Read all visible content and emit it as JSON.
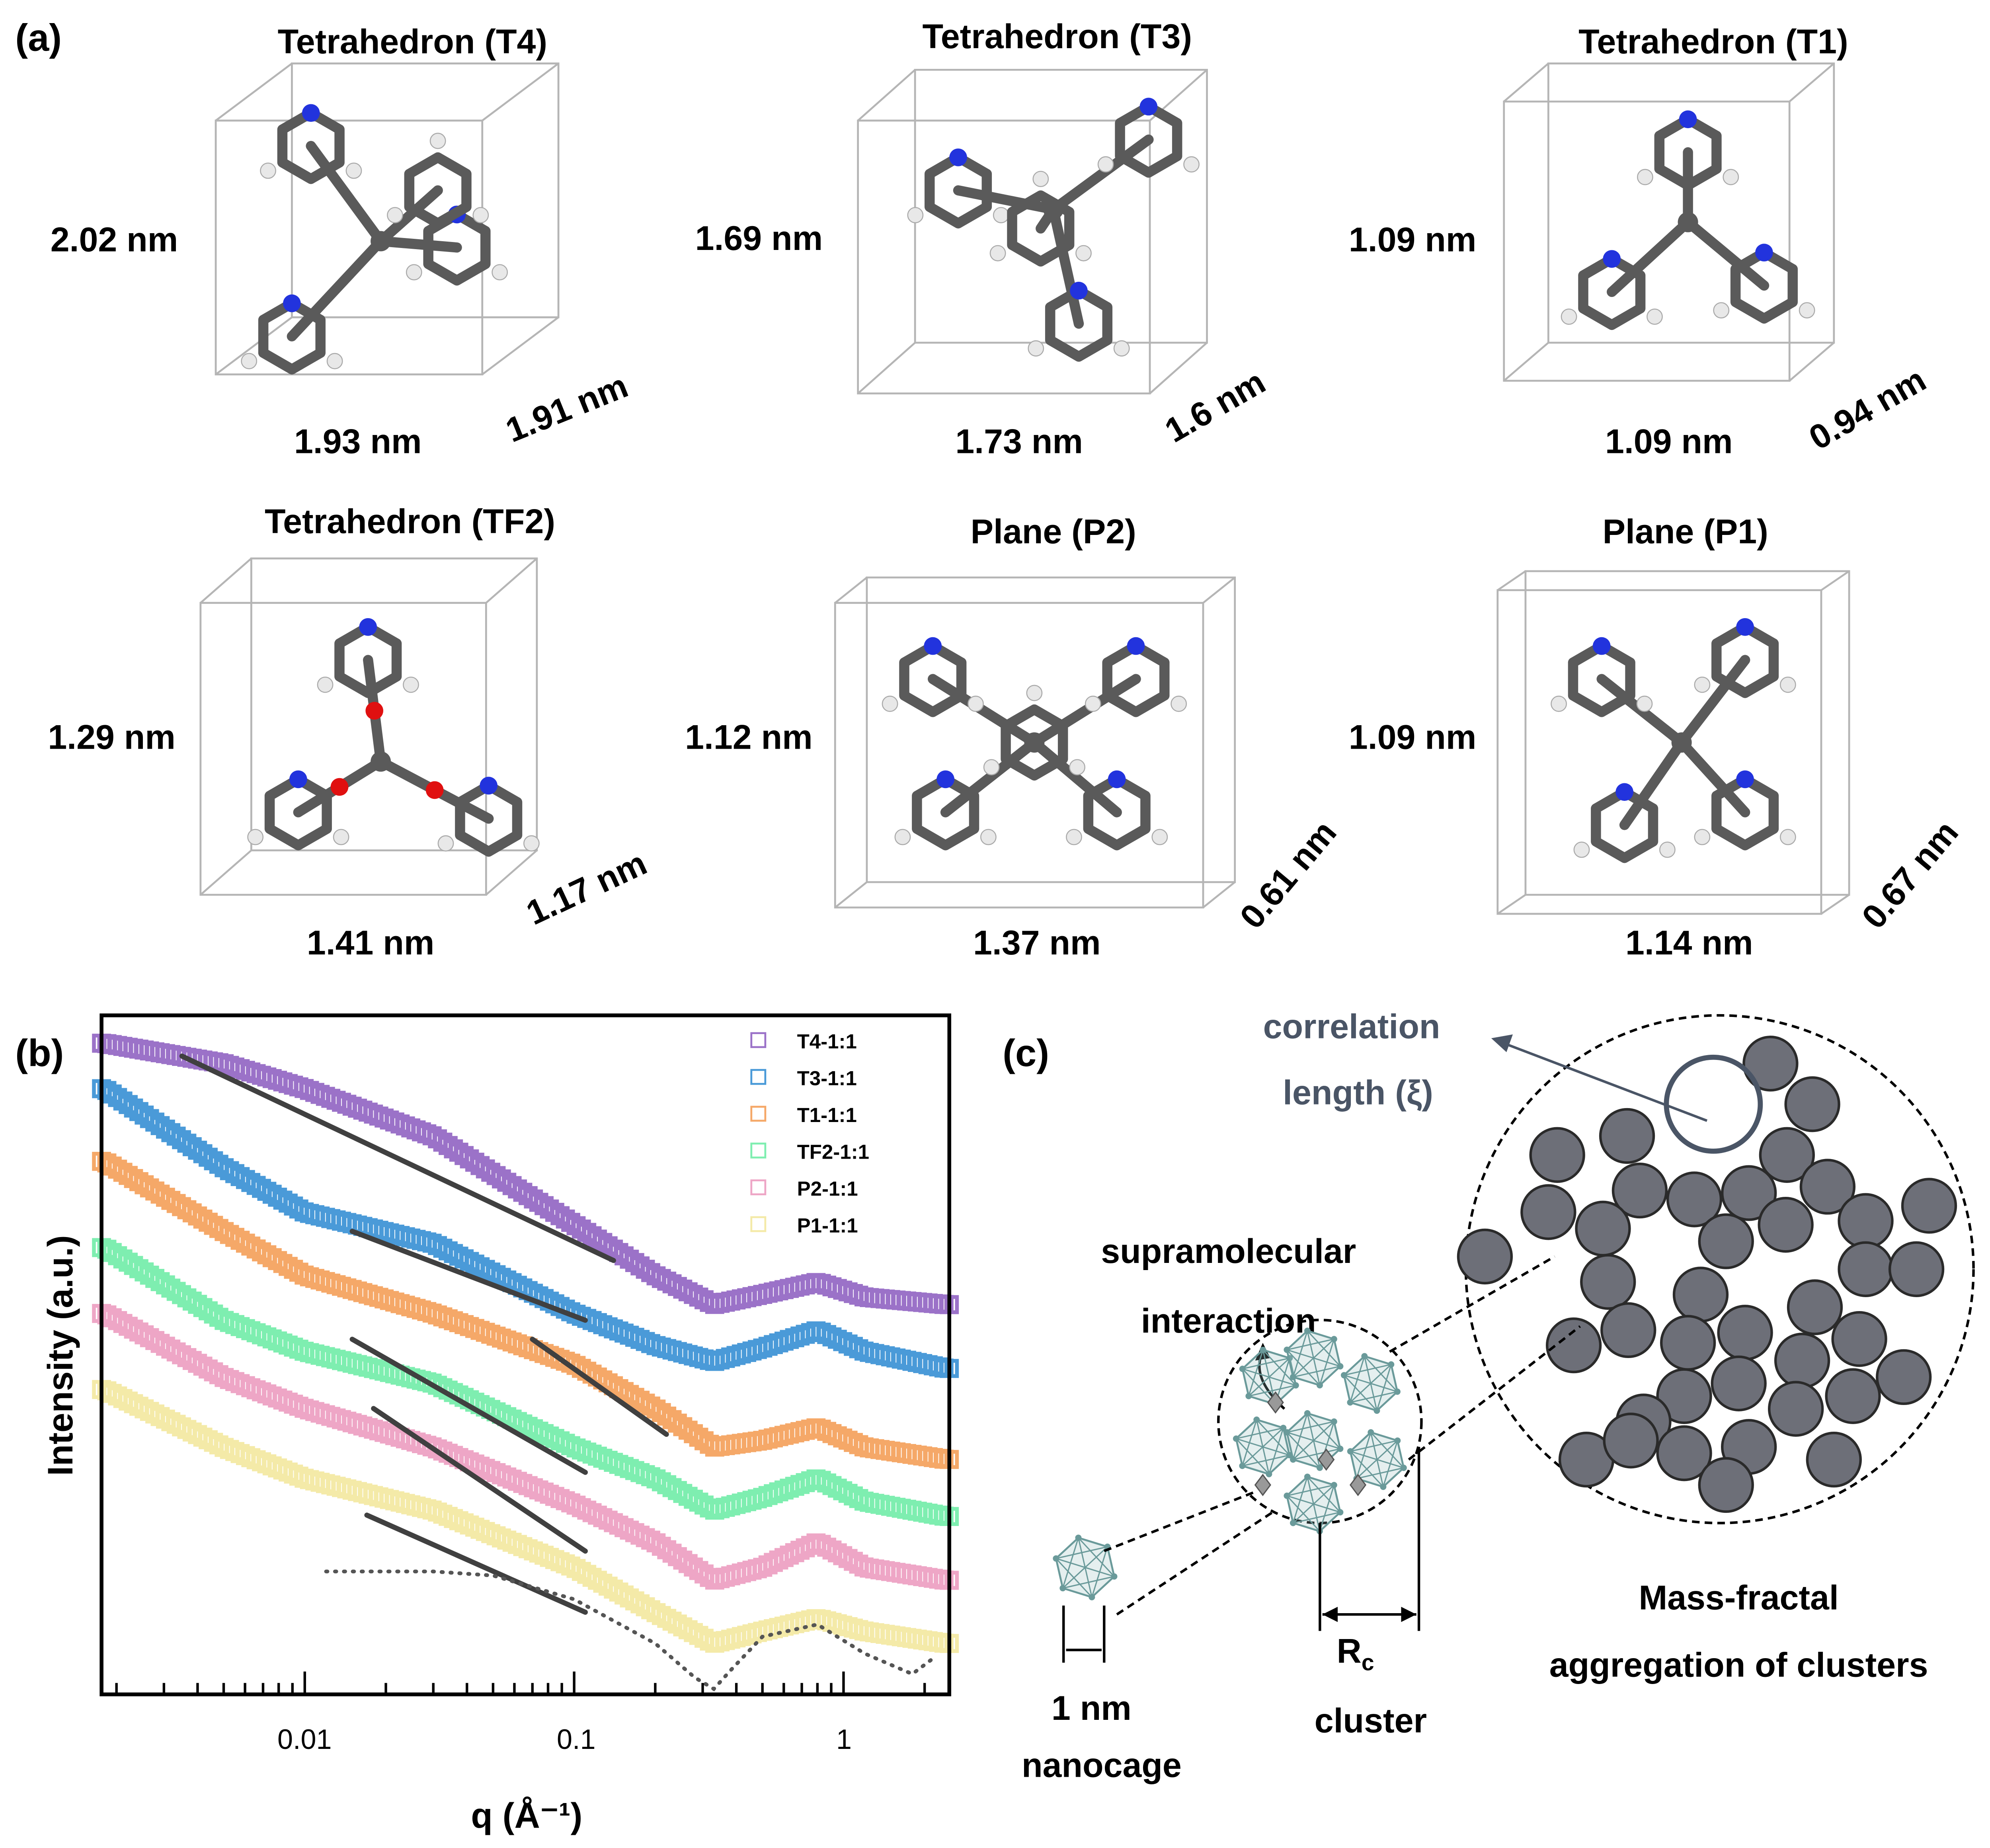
{
  "panel_a": {
    "label": "(a)",
    "molecules": [
      {
        "title": "Tetrahedron (T4)",
        "height": "2.02 nm",
        "width": "1.93 nm",
        "depth": "1.91 nm"
      },
      {
        "title": "Tetrahedron (T3)",
        "height": "1.69 nm",
        "width": "1.73 nm",
        "depth": "1.6 nm"
      },
      {
        "title": "Tetrahedron (T1)",
        "height": "1.09 nm",
        "width": "1.09 nm",
        "depth": "0.94 nm"
      },
      {
        "title": "Tetrahedron (TF2)",
        "height": "1.29 nm",
        "width": "1.41 nm",
        "depth": "1.17 nm"
      },
      {
        "title": "Plane (P2)",
        "height": "1.12 nm",
        "width": "1.37 nm",
        "depth": "0.61 nm"
      },
      {
        "title": "Plane (P1)",
        "height": "1.09 nm",
        "width": "1.14 nm",
        "depth": "0.67 nm"
      }
    ],
    "atom_colors": {
      "carbon": "#5a5a5a",
      "hydrogen": "#e8e8e8",
      "nitrogen": "#2233dd",
      "oxygen": "#e01010"
    }
  },
  "panel_b": {
    "label": "(b)"
  },
  "chart_data": {
    "type": "scatter",
    "xlabel": "q (Å⁻¹)",
    "ylabel": "Intensity (a.u.)",
    "x_scale": "log",
    "xlim": [
      0.00176,
      2.47
    ],
    "ylim": [
      0,
      100
    ],
    "x_ticks": [
      {
        "value": 0.01,
        "label": "0.01"
      },
      {
        "value": 0.1,
        "label": "0.1"
      },
      {
        "value": 1,
        "label": "1"
      }
    ],
    "y_ticks_shown": false,
    "grid": false,
    "legend_position": "top-right",
    "marker": "open-square",
    "q": [
      0.0018,
      0.005,
      0.01,
      0.03,
      0.1,
      0.2,
      0.33,
      0.5,
      0.8,
      1.2,
      2.4
    ],
    "series": [
      {
        "name": "T4-1:1",
        "color": "#9b72c8",
        "values": [
          95.9,
          92.9,
          89.2,
          82.2,
          69.2,
          61.7,
          57.4,
          58.9,
          60.7,
          58.5,
          57.4
        ]
      },
      {
        "name": "T3-1:1",
        "color": "#4a9ad8",
        "values": [
          89.2,
          77.6,
          71.0,
          66.4,
          56.1,
          51.4,
          49.0,
          51.0,
          53.6,
          50.5,
          48.0
        ]
      },
      {
        "name": "T1-1:1",
        "color": "#f5a868",
        "values": [
          78.5,
          68.2,
          61.7,
          56.1,
          48.6,
          42.1,
          36.4,
          37.4,
          39.3,
          36.4,
          34.6
        ]
      },
      {
        "name": "TF2-1:1",
        "color": "#7eeeb0",
        "values": [
          65.8,
          55.1,
          50.5,
          45.8,
          36.4,
          31.8,
          27.1,
          29.0,
          31.8,
          28.4,
          26.2
        ]
      },
      {
        "name": "P2-1:1",
        "color": "#eea6c6",
        "values": [
          56.1,
          46.7,
          42.1,
          36.4,
          28.0,
          22.4,
          16.8,
          18.7,
          22.4,
          18.7,
          16.8
        ]
      },
      {
        "name": "P1-1:1",
        "color": "#f4eaa8",
        "values": [
          44.9,
          36.4,
          31.8,
          27.1,
          18.7,
          12.1,
          7.5,
          9.3,
          11.2,
          9.3,
          7.5
        ]
      }
    ],
    "fits": [
      {
        "q": [
          0.0035,
          0.14
        ],
        "values": [
          94.0,
          63.9
        ]
      },
      {
        "q": [
          0.015,
          0.11
        ],
        "values": [
          68.2,
          55.1
        ]
      },
      {
        "q": [
          0.07,
          0.22
        ],
        "values": [
          52.3,
          38.3
        ]
      },
      {
        "q": [
          0.015,
          0.11
        ],
        "values": [
          52.3,
          32.7
        ]
      },
      {
        "q": [
          0.018,
          0.11
        ],
        "values": [
          42.1,
          21.1
        ]
      },
      {
        "q": [
          0.017,
          0.11
        ],
        "values": [
          26.4,
          12.1
        ]
      }
    ],
    "fit_color": "#404040",
    "model_curve": {
      "style": "dotted",
      "q": [
        0.012,
        0.03,
        0.05,
        0.1,
        0.2,
        0.28,
        0.33,
        0.38,
        0.5,
        0.8,
        1.2,
        1.8,
        2.2
      ],
      "values": [
        18.1,
        18.1,
        17.5,
        14.0,
        7.5,
        2.5,
        0.8,
        3.5,
        8.5,
        10.3,
        6.0,
        3.0,
        5.6
      ]
    }
  },
  "panel_c": {
    "label": "(c)",
    "correlation_line1": "correlation",
    "correlation_line2": "length (ξ)",
    "interaction_line1": "supramolecular",
    "interaction_line2": "interaction",
    "nanocage_size": "1 nm",
    "nanocage_label": "nanocage",
    "rc_main": "R",
    "rc_sub": "c",
    "cluster_label": "cluster",
    "fractal_line1": "Mass-fractal",
    "fractal_line2": "aggregation of clusters",
    "colors": {
      "particle": "#6d6f78",
      "text_slate": "#4a5566",
      "cage": "#6a9a9a"
    }
  }
}
